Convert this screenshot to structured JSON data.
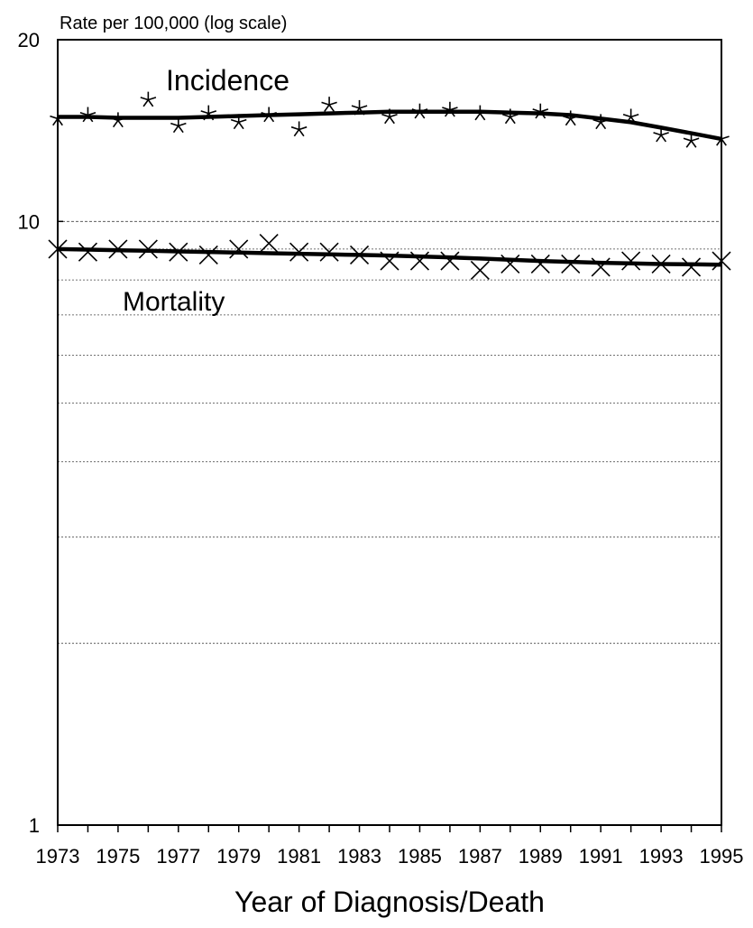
{
  "chart_data": {
    "type": "line",
    "ylabel": "Rate per 100,000 (log scale)",
    "xlabel": "Year of Diagnosis/Death",
    "yscale": "log",
    "ylim": [
      1,
      20
    ],
    "xlim": [
      1973,
      1995
    ],
    "y_tick_labels": [
      "1",
      "10",
      "20"
    ],
    "y_tick_values": [
      1,
      10,
      20
    ],
    "x_tick_labels": [
      "1973",
      "1975",
      "1977",
      "1979",
      "1981",
      "1983",
      "1985",
      "1987",
      "1989",
      "1991",
      "1993",
      "1995"
    ],
    "x_tick_values": [
      1973,
      1975,
      1977,
      1979,
      1981,
      1983,
      1985,
      1987,
      1989,
      1991,
      1993,
      1995
    ],
    "grid": {
      "horizontal_values": [
        2,
        3,
        4,
        5,
        6,
        7,
        8,
        9,
        10
      ]
    },
    "x": [
      1973,
      1974,
      1975,
      1976,
      1977,
      1978,
      1979,
      1980,
      1981,
      1982,
      1983,
      1984,
      1985,
      1986,
      1987,
      1988,
      1989,
      1990,
      1991,
      1992,
      1993,
      1994,
      1995
    ],
    "series": [
      {
        "name": "Incidence",
        "marker": "asterisk",
        "values": [
          14.8,
          15.0,
          14.7,
          15.9,
          14.4,
          15.1,
          14.6,
          15.0,
          14.2,
          15.6,
          15.4,
          14.9,
          15.2,
          15.3,
          15.1,
          14.9,
          15.2,
          14.8,
          14.6,
          14.9,
          13.9,
          13.6,
          13.7
        ],
        "trend": [
          14.9,
          14.9,
          14.85,
          14.85,
          14.85,
          14.9,
          14.95,
          15.0,
          15.05,
          15.1,
          15.15,
          15.2,
          15.2,
          15.2,
          15.2,
          15.15,
          15.1,
          15.0,
          14.8,
          14.6,
          14.3,
          14.0,
          13.7
        ],
        "color": "#000000"
      },
      {
        "name": "Mortality",
        "marker": "x",
        "values": [
          9.0,
          8.9,
          9.0,
          9.0,
          8.9,
          8.8,
          9.0,
          9.2,
          8.9,
          8.9,
          8.8,
          8.6,
          8.6,
          8.6,
          8.3,
          8.5,
          8.5,
          8.5,
          8.4,
          8.6,
          8.5,
          8.4,
          8.6
        ],
        "trend": [
          9.0,
          8.98,
          8.96,
          8.94,
          8.92,
          8.9,
          8.88,
          8.86,
          8.84,
          8.82,
          8.8,
          8.78,
          8.75,
          8.72,
          8.68,
          8.64,
          8.6,
          8.57,
          8.54,
          8.52,
          8.5,
          8.49,
          8.48
        ],
        "color": "#000000"
      }
    ]
  }
}
